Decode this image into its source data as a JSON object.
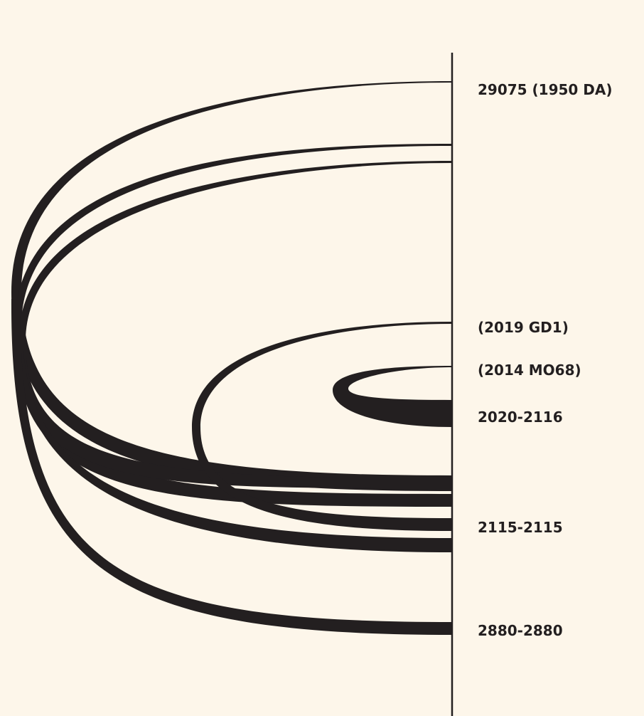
{
  "colors": {
    "background": "#fdf6ea",
    "ink": "#231f20"
  },
  "labels": {
    "l1": "29075 (1950 DA)",
    "l2": "(2019 GD1)",
    "l3": "(2014 MO68)",
    "l4": "2020-2116",
    "l5": "2115-2115",
    "l6": "2880-2880"
  }
}
